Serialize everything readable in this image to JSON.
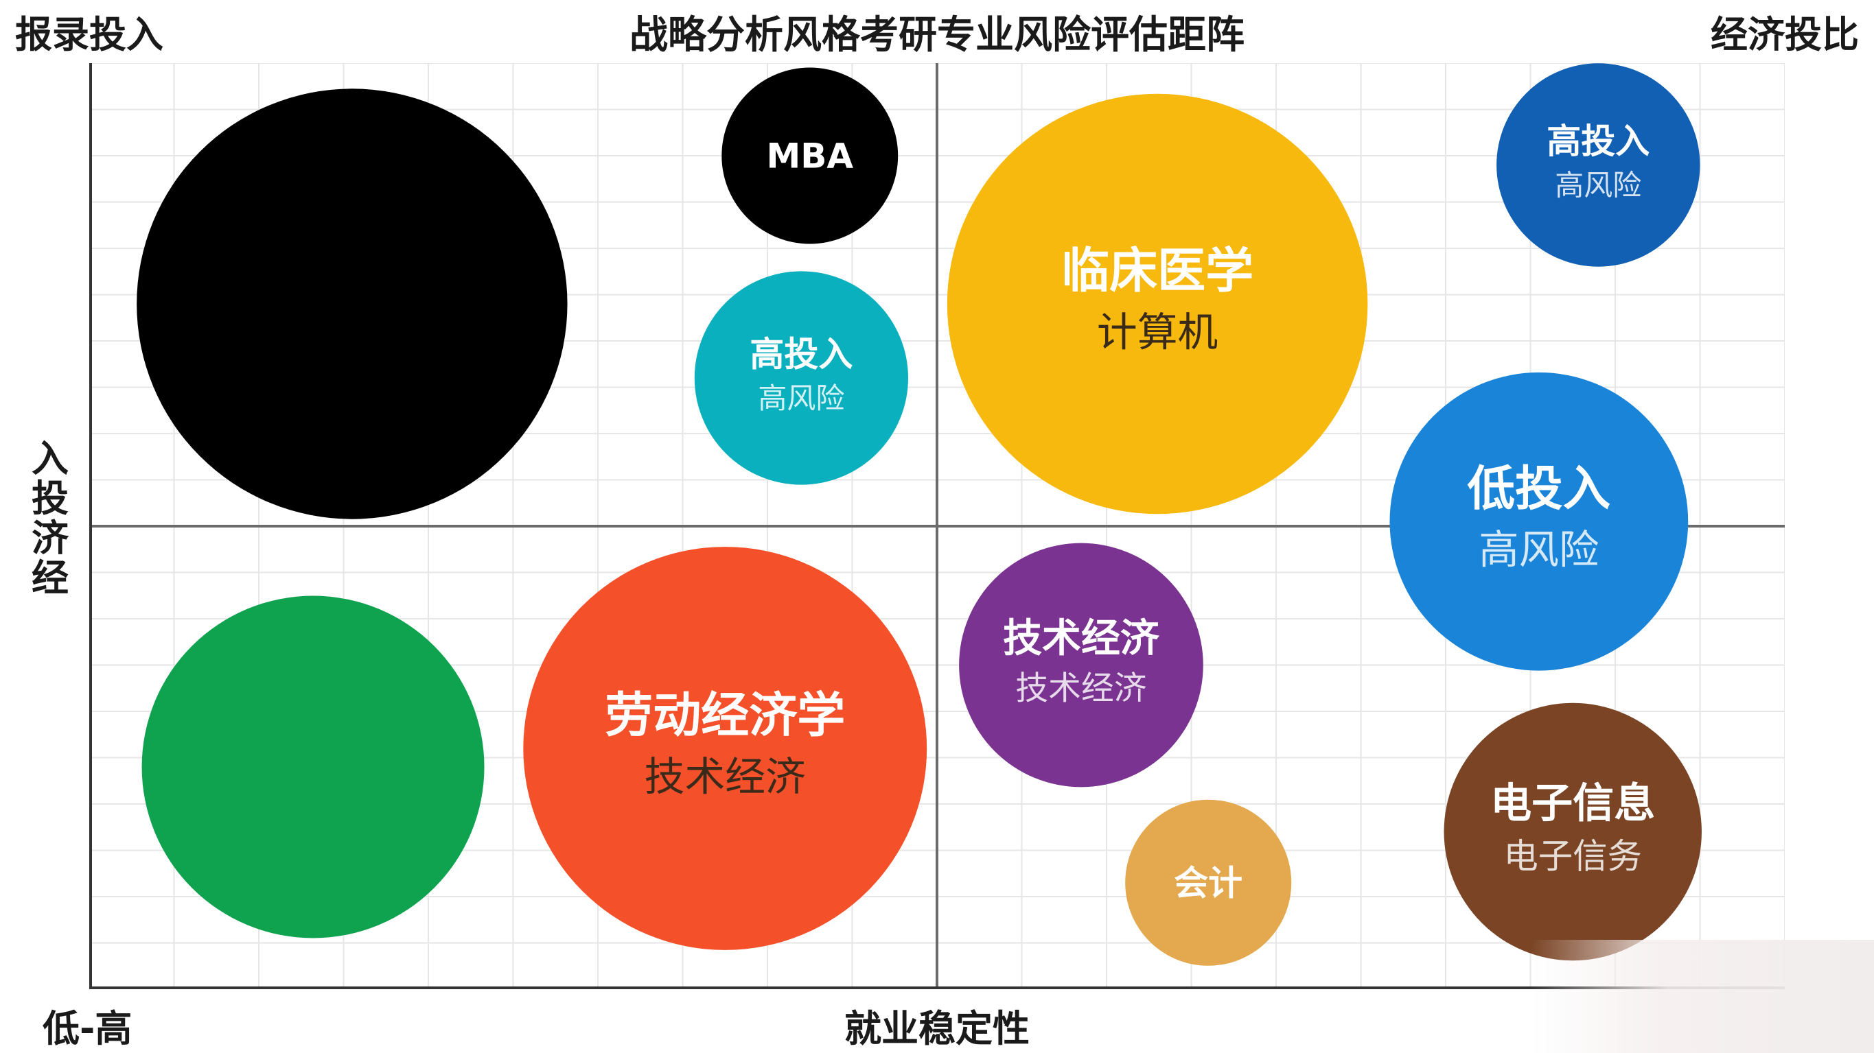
{
  "header": {
    "corner_left": "报录投入",
    "title": "战略分析风格考研专业风险评估距阵",
    "corner_right": "经济投比"
  },
  "axes": {
    "xlabel": "就业稳定性",
    "xrange": "低-高",
    "ylabel": "入投济经"
  },
  "chart_data": {
    "type": "scatter",
    "title": "战略分析风格考研专业风险评估距阵",
    "xlabel": "就业稳定性",
    "ylabel": "入投济经",
    "corner_labels": [
      "报录投入",
      "经济投比",
      "低-高"
    ],
    "xlim": [
      0,
      10
    ],
    "ylim": [
      0,
      10
    ],
    "grid": true,
    "quadrant_lines": {
      "x": 5,
      "y": 5
    },
    "points": [
      {
        "x": 1.55,
        "y": 7.4,
        "size": 1.27,
        "color": "#000000",
        "label": "",
        "sublabel": ""
      },
      {
        "x": 4.25,
        "y": 9.0,
        "size": 0.52,
        "color": "#000000",
        "label": "MBA",
        "sublabel": ""
      },
      {
        "x": 4.2,
        "y": 6.6,
        "size": 0.63,
        "color": "#0bb0bf",
        "label": "高投入",
        "sublabel": "高风险"
      },
      {
        "x": 6.3,
        "y": 7.4,
        "size": 1.24,
        "color": "#f7b90e",
        "label": "临床医学",
        "sublabel": "计算机"
      },
      {
        "x": 8.9,
        "y": 8.9,
        "size": 0.6,
        "color": "#1160b4",
        "label": "高投入",
        "sublabel": "高风险"
      },
      {
        "x": 8.55,
        "y": 5.05,
        "size": 0.88,
        "color": "#1a84d8",
        "label": "低投入",
        "sublabel": "高风险"
      },
      {
        "x": 1.32,
        "y": 2.4,
        "size": 1.01,
        "color": "#0fa24f",
        "label": "",
        "sublabel": ""
      },
      {
        "x": 3.75,
        "y": 2.6,
        "size": 1.19,
        "color": "#f4502a",
        "label": "劳动经济学",
        "sublabel": "技术经济"
      },
      {
        "x": 5.85,
        "y": 3.5,
        "size": 0.72,
        "color": "#7a3390",
        "label": "技术经济",
        "sublabel": "技术经济"
      },
      {
        "x": 6.6,
        "y": 1.15,
        "size": 0.49,
        "color": "#e4a84e",
        "label": "会计",
        "sublabel": ""
      },
      {
        "x": 8.75,
        "y": 1.7,
        "size": 0.76,
        "color": "#7a4425",
        "label": "电子信息",
        "sublabel": "电子信务"
      }
    ]
  }
}
